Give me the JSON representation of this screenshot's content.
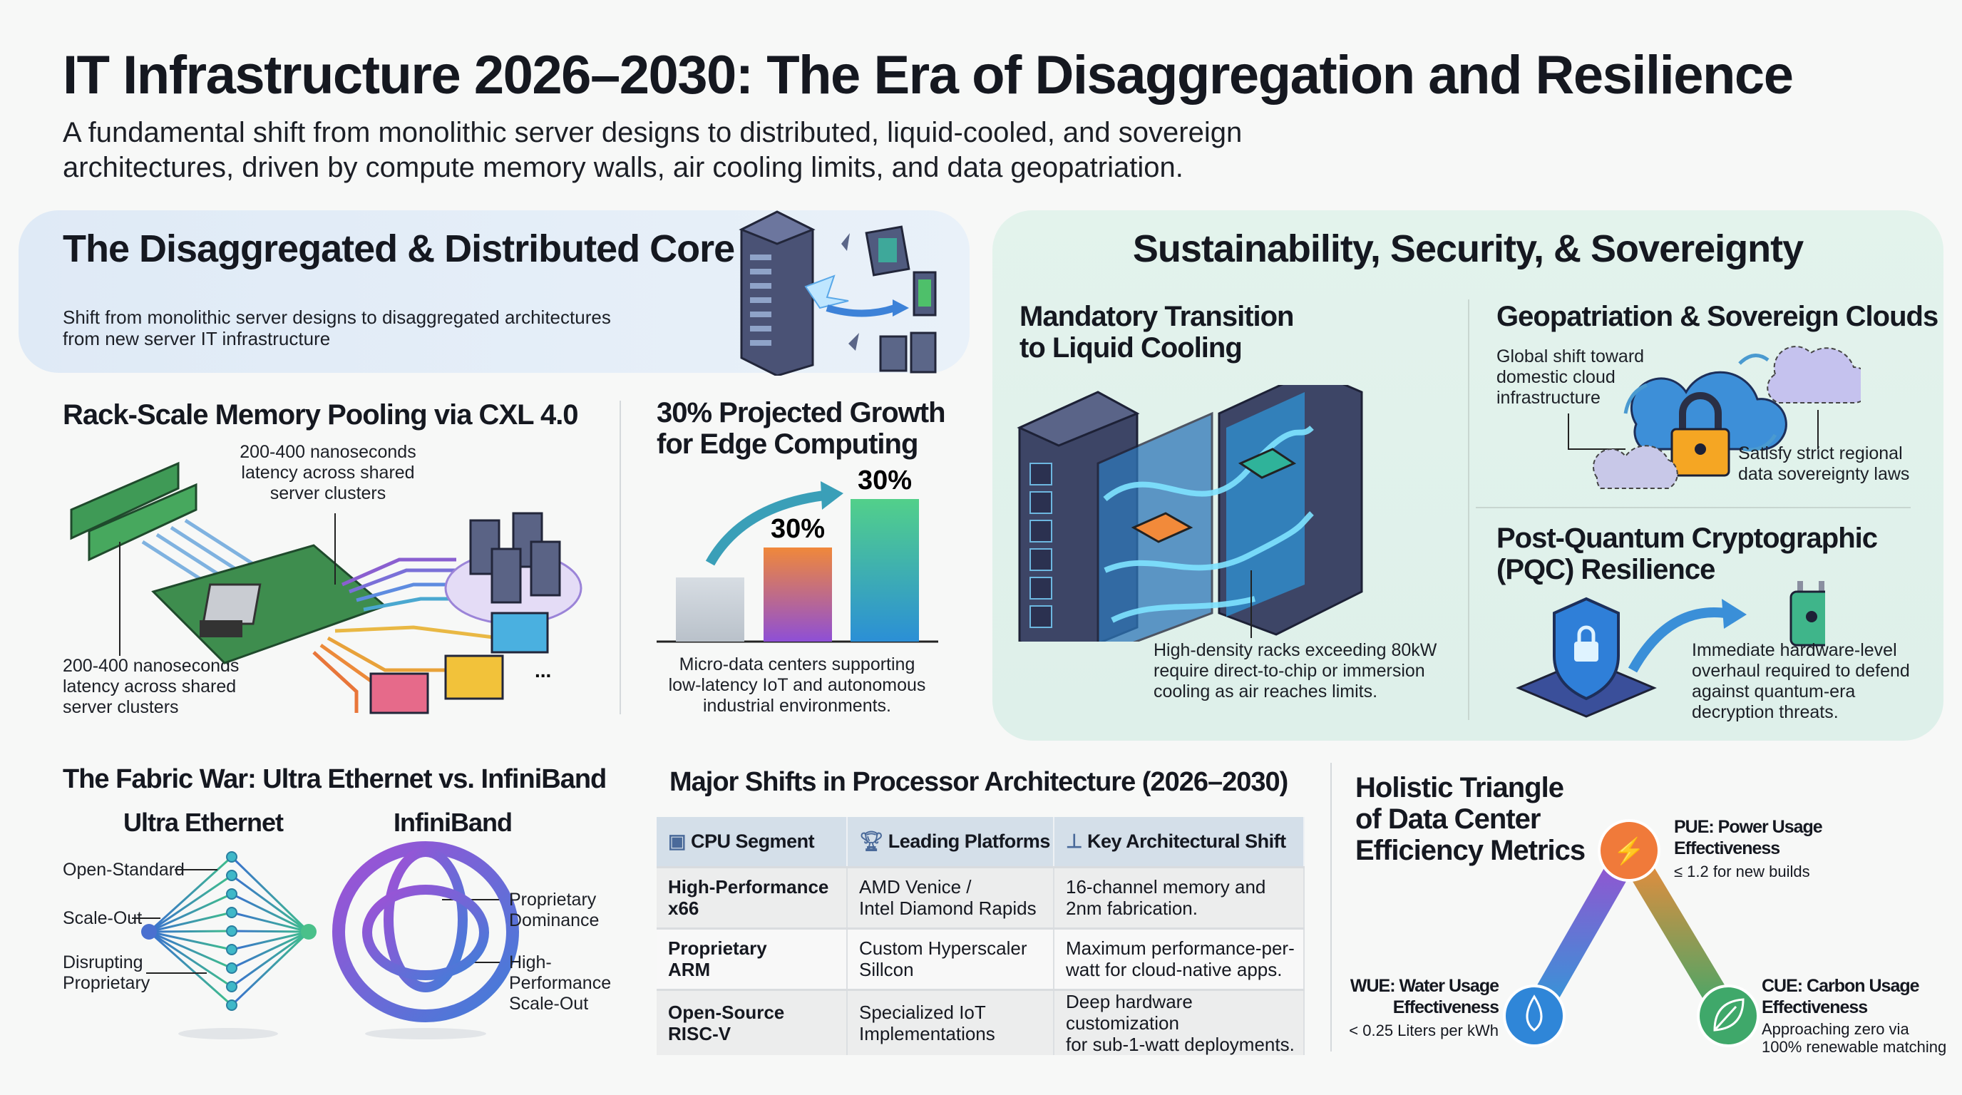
{
  "header": {
    "title": "IT Infrastructure 2026–2030: The Era of Disaggregation and Resilience",
    "subtitle_lines": [
      "A fundamental shift from monolithic server designs to distributed, liquid-cooled, and sovereign",
      "architectures, driven by compute memory walls, air cooling limits, and data geopatriation."
    ]
  },
  "core": {
    "title": "The Disaggregated & Distributed Core",
    "desc_lines": [
      "Shift from monolithic server designs to disaggregated architectures",
      "from new server IT infrastructure"
    ],
    "memory": {
      "title": "Rack-Scale Memory Pooling via CXL 4.0",
      "top_label": [
        "200-400 nanoseconds",
        "latency across shared",
        "server clusters"
      ],
      "bottom_label": [
        "200-400 nanoseconds",
        "latency across shared",
        "server clusters"
      ],
      "ellipsis": "..."
    },
    "edge": {
      "title_lines": [
        "30% Projected Growth",
        "for Edge Computing"
      ],
      "caption_lines": [
        "Micro-data centers supporting",
        "low-latency IoT and autonomous",
        "industrial environments."
      ]
    }
  },
  "chart_data": {
    "type": "bar",
    "title": "30% Projected Growth for Edge Computing",
    "relative_heights": [
      0.45,
      0.66,
      1.0
    ],
    "data_labels": [
      "",
      "30%",
      "30%"
    ],
    "colors": [
      [
        "#d7dde3",
        "#b9c1ca"
      ],
      [
        "#f0883a",
        "#8e4fd6"
      ],
      [
        "#52d08a",
        "#2b8fd6"
      ]
    ],
    "grid": false,
    "legend": "none"
  },
  "sustain": {
    "title": "Sustainability, Security, & Sovereignty",
    "cooling": {
      "title_lines": [
        "Mandatory Transition",
        "to Liquid Cooling"
      ],
      "caption_lines": [
        "High-density racks exceeding 80kW",
        "require direct-to-chip or immersion",
        "cooling as air reaches limits."
      ]
    },
    "geo": {
      "title": "Geopatriation & Sovereign Clouds",
      "desc_lines": [
        "Global shift toward",
        "domestic cloud",
        "infrastructure"
      ],
      "note_lines": [
        "Satisfy strict regional",
        "data sovereignty laws"
      ]
    },
    "pqc": {
      "title_lines": [
        "Post-Quantum Cryptographic",
        "(PQC) Resilience"
      ],
      "desc_lines": [
        "Immediate hardware-level",
        "overhaul required to defend",
        "against quantum-era",
        "decryption threats."
      ]
    }
  },
  "fabric": {
    "title": "The Fabric War: Ultra Ethernet vs. InfiniBand",
    "ethernet": {
      "name": "Ultra Ethernet",
      "labels": [
        "Open-Standard",
        "Scale-Out",
        "Disrupting Proprietary"
      ]
    },
    "infiniband": {
      "name": "InfiniBand",
      "labels": [
        "Proprietary Dominance",
        "High-Performance Scale-Out"
      ]
    }
  },
  "processor_table": {
    "title": "Major Shifts in Processor Architecture (2026–2030)",
    "columns": [
      {
        "label": "CPU Segment",
        "icon": "cpu-chip-icon"
      },
      {
        "label": "Leading Platforms",
        "icon": "trophy-icon"
      },
      {
        "label": "Key Architectural Shift",
        "icon": "hierarchy-icon"
      }
    ],
    "rows": [
      {
        "segment": [
          "High-Performance",
          "x66"
        ],
        "platforms": [
          "AMD Venice /",
          "Intel Diamond Rapids"
        ],
        "shift": [
          "16-channel memory and",
          "2nm fabrication."
        ]
      },
      {
        "segment": [
          "Proprietary",
          "ARM"
        ],
        "platforms": [
          "Custom Hyperscaler",
          "Sillcon"
        ],
        "shift": [
          "Maximum performance-per-",
          "watt for cloud-native apps."
        ]
      },
      {
        "segment": [
          "Open-Source",
          "RISC-V"
        ],
        "platforms": [
          "Specialized IoT",
          "Implementations"
        ],
        "shift": [
          "Deep hardware customization",
          "for sub-1-watt deployments."
        ]
      }
    ]
  },
  "metrics": {
    "title_lines": [
      "Holistic Triangle",
      "of Data Center",
      "Efficiency Metrics"
    ],
    "pue": {
      "title_lines": [
        "PUE: Power Usage",
        "Effectiveness"
      ],
      "value": "≤ 1.2 for new builds",
      "icon": "plug-icon",
      "color": "#f07a3a"
    },
    "wue": {
      "title_lines": [
        "WUE: Water Usage",
        "Effectiveness"
      ],
      "value": "< 0.25 Liters per kWh",
      "icon": "water-drop-icon",
      "color": "#2f86d8"
    },
    "cue": {
      "title_lines": [
        "CUE: Carbon Usage",
        "Effectiveness"
      ],
      "value_lines": [
        "Approaching zero via",
        "100% renewable matching"
      ],
      "icon": "leaf-icon",
      "color": "#3fa86a"
    }
  }
}
